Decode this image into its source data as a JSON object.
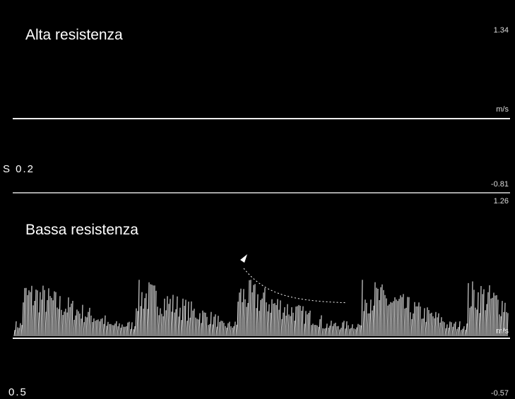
{
  "panels": [
    {
      "title": "Alta resistenza",
      "scale_max": "1.34",
      "unit": "m/s",
      "scale_min": "-0.81",
      "setting": "S 0.2"
    },
    {
      "title": "Bassa resistenza",
      "scale_max": "1.26",
      "unit": "m/s",
      "scale_min": "-0.57",
      "setting": "0.5"
    }
  ]
}
